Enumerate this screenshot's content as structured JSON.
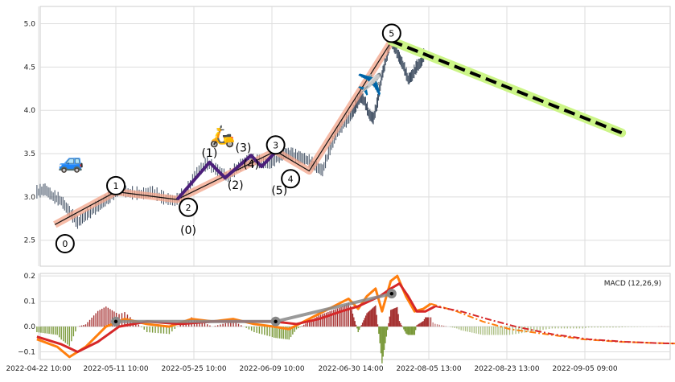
{
  "chart_data": [
    {
      "type": "candlestick",
      "ylim": [
        2.2,
        5.2
      ],
      "grid": true,
      "yticks": [
        "2.5",
        "3.0",
        "3.5",
        "4.0",
        "4.5",
        "5.0"
      ],
      "price_series": [
        [
          "2022-04-22",
          3.05
        ],
        [
          "2022-04-24",
          3.08
        ],
        [
          "2022-04-26",
          3.0
        ],
        [
          "2022-04-28",
          2.95
        ],
        [
          "2022-04-30",
          2.82
        ],
        [
          "2022-05-02",
          2.7
        ],
        [
          "2022-05-04",
          2.78
        ],
        [
          "2022-05-06",
          2.85
        ],
        [
          "2022-05-08",
          2.92
        ],
        [
          "2022-05-10",
          3.0
        ],
        [
          "2022-05-12",
          3.08
        ],
        [
          "2022-05-14",
          3.04
        ],
        [
          "2022-05-16",
          3.03
        ],
        [
          "2022-05-18",
          3.05
        ],
        [
          "2022-05-20",
          2.98
        ],
        [
          "2022-05-22",
          2.95
        ],
        [
          "2022-05-24",
          3.05
        ],
        [
          "2022-05-26",
          3.28
        ],
        [
          "2022-05-28",
          3.38
        ],
        [
          "2022-05-30",
          3.3
        ],
        [
          "2022-06-01",
          3.22
        ],
        [
          "2022-06-03",
          3.35
        ],
        [
          "2022-06-05",
          3.42
        ],
        [
          "2022-06-07",
          3.4
        ],
        [
          "2022-06-09",
          3.38
        ],
        [
          "2022-06-11",
          3.45
        ],
        [
          "2022-06-13",
          3.5
        ],
        [
          "2022-06-15",
          3.48
        ],
        [
          "2022-06-17",
          3.45
        ],
        [
          "2022-06-19",
          3.42
        ],
        [
          "2022-06-21",
          3.35
        ],
        [
          "2022-06-23",
          3.3
        ],
        [
          "2022-06-25",
          3.55
        ],
        [
          "2022-06-27",
          3.75
        ],
        [
          "2022-06-29",
          3.85
        ],
        [
          "2022-07-01",
          3.95
        ],
        [
          "2022-07-03",
          4.05
        ],
        [
          "2022-07-05",
          4.15
        ],
        [
          "2022-07-07",
          4.1
        ],
        [
          "2022-07-09",
          3.95
        ],
        [
          "2022-07-11",
          3.9
        ],
        [
          "2022-07-13",
          4.1
        ],
        [
          "2022-07-15",
          4.4
        ],
        [
          "2022-07-17",
          4.6
        ],
        [
          "2022-07-19",
          4.8
        ],
        [
          "2022-07-21",
          4.72
        ],
        [
          "2022-07-23",
          4.6
        ],
        [
          "2022-07-25",
          4.5
        ],
        [
          "2022-07-27",
          4.35
        ],
        [
          "2022-07-29",
          4.4
        ],
        [
          "2022-07-31",
          4.5
        ],
        [
          "2022-08-02",
          4.55
        ],
        [
          "2022-08-04",
          4.68
        ]
      ],
      "wave_labels": [
        {
          "label": "0",
          "x": "2022-04-28 22:00",
          "y": 2.46,
          "circled": true
        },
        {
          "label": "1",
          "x": "2022-05-11 10:00",
          "y": 3.13,
          "circled": true
        },
        {
          "label": "2",
          "x": "2022-05-24 10:00",
          "y": 2.88,
          "circled": true
        },
        {
          "label": "3",
          "x": "2022-06-10 10:00",
          "y": 3.6,
          "circled": true
        },
        {
          "label": "4",
          "x": "2022-06-14 10:00",
          "y": 3.21,
          "circled": true
        },
        {
          "label": "5",
          "x": "2022-07-19 10:00",
          "y": 4.89,
          "circled": true
        },
        {
          "label": "(0)",
          "x": "2022-05-24 10:00",
          "y": 2.62,
          "circled": false
        },
        {
          "label": "(1)",
          "x": "2022-05-28 10:00",
          "y": 3.51,
          "circled": false
        },
        {
          "label": "(2)",
          "x": "2022-06-02 10:00",
          "y": 3.14,
          "circled": false
        },
        {
          "label": "(3)",
          "x": "2022-06-03 22:00",
          "y": 3.57,
          "circled": false
        },
        {
          "label": "(4)",
          "x": "2022-06-05 10:00",
          "y": 3.38,
          "circled": false
        },
        {
          "label": "(5)",
          "x": "2022-06-11 10:00",
          "y": 3.08,
          "circled": false
        }
      ],
      "main_wave": [
        [
          "2022-04-26 10:00",
          2.68
        ],
        [
          "2022-05-11 10:00",
          3.06
        ],
        [
          "2022-05-22 10:00",
          2.97
        ],
        [
          "2022-06-10 10:00",
          3.53
        ],
        [
          "2022-06-19 10:00",
          3.3
        ],
        [
          "2022-07-19 10:00",
          4.8
        ]
      ],
      "sub_wave": [
        [
          "2022-05-22 10:00",
          2.97
        ],
        [
          "2022-05-28 10:00",
          3.4
        ],
        [
          "2022-05-31 10:00",
          3.22
        ],
        [
          "2022-06-05 10:00",
          3.48
        ],
        [
          "2022-06-07 10:00",
          3.35
        ],
        [
          "2022-06-10 10:00",
          3.52
        ]
      ],
      "forecast_line": [
        [
          "2022-07-19 10:00",
          4.8
        ],
        [
          "2022-09-11 10:00",
          3.74
        ]
      ],
      "icons": [
        {
          "name": "car-icon",
          "glyph": "🚙",
          "x": "2022-04-30 10:00",
          "y": 3.33
        },
        {
          "name": "scooter-icon",
          "glyph": "🛵",
          "x": "2022-05-30 22:00",
          "y": 3.62
        },
        {
          "name": "airplane-icon",
          "glyph": "✈️",
          "x": "2022-07-09 10:00",
          "y": 4.22
        }
      ]
    },
    {
      "type": "line",
      "title": "MACD (12,26,9)",
      "ylim": [
        -0.13,
        0.21
      ],
      "yticks": [
        "−0.1",
        "0.0",
        "0.1",
        "0.2"
      ],
      "xticks": [
        "2022-04-22 10:00",
        "2022-05-11 10:00",
        "2022-05-25 10:00",
        "2022-06-09 10:00",
        "2022-06-30 14:00",
        "2022-08-05 13:00",
        "2022-08-23 13:00",
        "2022-09-05 09:00"
      ],
      "series": [
        {
          "color": "#ff7f0e",
          "values": [
            [
              "2022-04-22",
              -0.05
            ],
            [
              "2022-04-27",
              -0.08
            ],
            [
              "2022-04-30",
              -0.12
            ],
            [
              "2022-05-04",
              -0.08
            ],
            [
              "2022-05-09",
              0.0
            ],
            [
              "2022-05-13",
              0.03
            ],
            [
              "2022-05-17",
              0.01
            ],
            [
              "2022-05-21",
              0.0
            ],
            [
              "2022-05-25",
              0.03
            ],
            [
              "2022-05-29",
              0.02
            ],
            [
              "2022-06-02",
              0.03
            ],
            [
              "2022-06-06",
              0.01
            ],
            [
              "2022-06-10",
              0.0
            ],
            [
              "2022-06-14",
              -0.01
            ],
            [
              "2022-06-18",
              0.02
            ],
            [
              "2022-06-22",
              0.05
            ],
            [
              "2022-06-26",
              0.08
            ],
            [
              "2022-06-30",
              0.11
            ],
            [
              "2022-07-04",
              0.07
            ],
            [
              "2022-07-08",
              0.12
            ],
            [
              "2022-07-12",
              0.15
            ],
            [
              "2022-07-15",
              0.06
            ],
            [
              "2022-07-19",
              0.18
            ],
            [
              "2022-07-22",
              0.2
            ],
            [
              "2022-07-26",
              0.12
            ],
            [
              "2022-07-30",
              0.06
            ],
            [
              "2022-08-03",
              0.07
            ],
            [
              "2022-08-06",
              0.09
            ]
          ]
        },
        {
          "color": "#d62728",
          "values": [
            [
              "2022-04-22",
              -0.04
            ],
            [
              "2022-04-28",
              -0.07
            ],
            [
              "2022-05-02",
              -0.1
            ],
            [
              "2022-05-07",
              -0.06
            ],
            [
              "2022-05-12",
              0.0
            ],
            [
              "2022-05-17",
              0.02
            ],
            [
              "2022-05-23",
              0.01
            ],
            [
              "2022-05-29",
              0.02
            ],
            [
              "2022-06-04",
              0.02
            ],
            [
              "2022-06-10",
              0.02
            ],
            [
              "2022-06-16",
              0.01
            ],
            [
              "2022-06-22",
              0.03
            ],
            [
              "2022-06-28",
              0.06
            ],
            [
              "2022-07-04",
              0.08
            ],
            [
              "2022-07-09",
              0.1
            ],
            [
              "2022-07-14",
              0.12
            ],
            [
              "2022-07-19",
              0.15
            ],
            [
              "2022-07-23",
              0.17
            ],
            [
              "2022-07-27",
              0.12
            ],
            [
              "2022-07-31",
              0.06
            ],
            [
              "2022-08-04",
              0.06
            ],
            [
              "2022-08-07",
              0.08
            ]
          ]
        },
        {
          "color": "#ff7f0e",
          "dashed": true,
          "values": [
            [
              "2022-08-06",
              0.09
            ],
            [
              "2022-08-12",
              0.06
            ],
            [
              "2022-08-18",
              0.02
            ],
            [
              "2022-08-24",
              -0.01
            ],
            [
              "2022-08-30",
              -0.03
            ],
            [
              "2022-09-05",
              -0.05
            ],
            [
              "2022-09-11",
              -0.06
            ],
            [
              "2022-09-17",
              -0.065
            ],
            [
              "2022-09-22",
              -0.068
            ],
            [
              "2022-09-27",
              -0.068
            ]
          ]
        },
        {
          "color": "#d62728",
          "dashed": true,
          "values": [
            [
              "2022-08-07",
              0.08
            ],
            [
              "2022-08-13",
              0.06
            ],
            [
              "2022-08-19",
              0.03
            ],
            [
              "2022-08-25",
              0.0
            ],
            [
              "2022-08-31",
              -0.03
            ],
            [
              "2022-09-06",
              -0.05
            ],
            [
              "2022-09-12",
              -0.06
            ],
            [
              "2022-09-18",
              -0.066
            ],
            [
              "2022-09-23",
              -0.068
            ],
            [
              "2022-09-27",
              -0.068
            ]
          ]
        }
      ],
      "wave_markers": [
        [
          "2022-05-11 10:00",
          0.02
        ],
        [
          "2022-06-10 10:00",
          0.02
        ],
        [
          "2022-07-19 10:00",
          0.13
        ]
      ]
    }
  ]
}
